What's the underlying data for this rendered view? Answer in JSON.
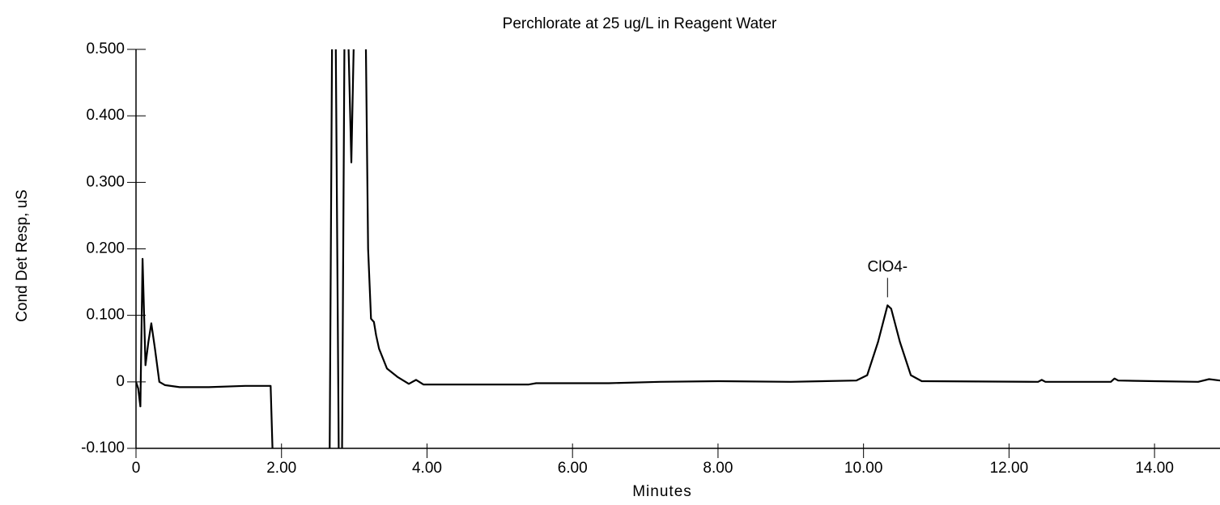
{
  "chart_data": {
    "type": "line",
    "title": "Perchlorate at 25 ug/L in Reagent Water",
    "xlabel": "Minutes",
    "ylabel": "Cond Det Resp, uS",
    "xlim": [
      0,
      14.9
    ],
    "ylim": [
      -0.1,
      0.5
    ],
    "xticks": [
      0,
      {
        "value": 2,
        "label": "2.00"
      },
      {
        "value": 4,
        "label": "4.00"
      },
      {
        "value": 6,
        "label": "6.00"
      },
      {
        "value": 8,
        "label": "8.00"
      },
      {
        "value": 10,
        "label": "10.00"
      },
      {
        "value": 12,
        "label": "12.00"
      },
      {
        "value": 14,
        "label": "14.00"
      }
    ],
    "yticks": [
      {
        "value": -0.1,
        "label": "-0.100"
      },
      0,
      {
        "value": 0.1,
        "label": "0.100"
      },
      {
        "value": 0.2,
        "label": "0.200"
      },
      {
        "value": 0.3,
        "label": "0.300"
      },
      {
        "value": 0.4,
        "label": "0.400"
      },
      {
        "value": 0.5,
        "label": "0.500"
      }
    ],
    "series": [
      {
        "name": "Cond Det",
        "color": "#000000",
        "x": [
          0,
          0.03,
          0.06,
          0.09,
          0.13,
          0.17,
          0.21,
          0.26,
          0.32,
          0.4,
          0.6,
          1.0,
          1.5,
          1.85,
          1.89,
          2.66,
          2.7,
          2.74,
          2.79,
          2.83,
          2.87,
          2.9,
          2.96,
          3.01,
          3.15,
          3.19,
          3.23,
          3.27,
          3.3,
          3.34,
          3.45,
          3.6,
          3.75,
          3.85,
          3.95,
          4.5,
          5.4,
          5.5,
          6.5,
          7.2,
          8.0,
          9.0,
          9.9,
          10.05,
          10.2,
          10.33,
          10.38,
          10.5,
          10.65,
          10.8,
          12.4,
          12.45,
          12.5,
          13.4,
          13.45,
          13.5,
          14.0,
          14.6,
          14.75,
          14.9
        ],
        "values": [
          0.0,
          -0.01,
          -0.037,
          0.185,
          0.025,
          0.06,
          0.088,
          0.05,
          0.0,
          -0.005,
          -0.008,
          -0.008,
          -0.006,
          -0.006,
          -0.15,
          -0.15,
          0.6,
          0.6,
          -0.15,
          -0.15,
          0.6,
          0.6,
          0.33,
          0.6,
          0.6,
          0.2,
          0.095,
          0.09,
          0.07,
          0.05,
          0.02,
          0.007,
          -0.003,
          0.003,
          -0.004,
          -0.004,
          -0.004,
          -0.002,
          -0.002,
          0.0,
          0.001,
          0.0,
          0.002,
          0.01,
          0.06,
          0.115,
          0.11,
          0.06,
          0.01,
          0.001,
          0.0,
          0.003,
          0.0,
          0.0,
          0.005,
          0.002,
          0.001,
          0.0,
          0.004,
          0.002
        ]
      }
    ],
    "annotations": [
      {
        "text": "ClO4-",
        "x": 10.33,
        "y": 0.115
      }
    ]
  }
}
